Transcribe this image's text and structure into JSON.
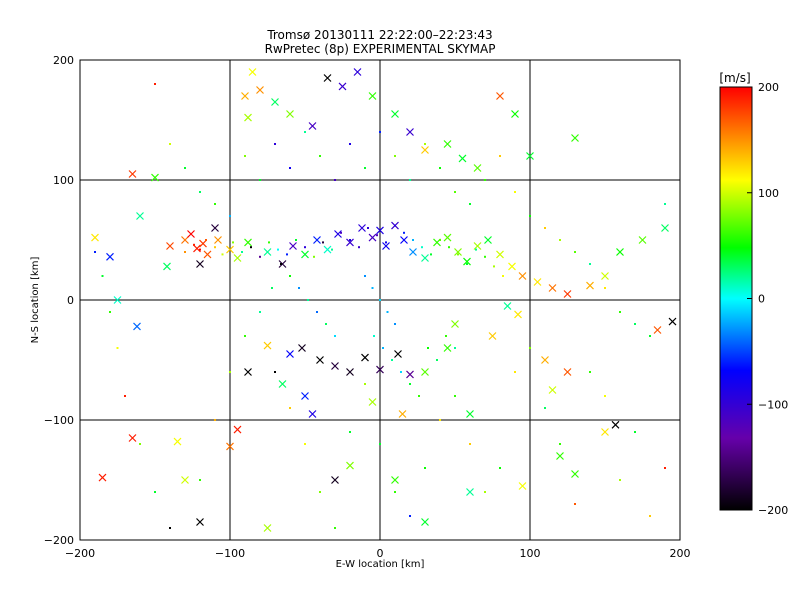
{
  "chart_data": {
    "type": "scatter",
    "title": "Tromsø 20130111 22:22:00–22:23:43",
    "subtitle": "RwPretec (8p) EXPERIMENTAL SKYMAP",
    "xlabel": "E-W location [km]",
    "ylabel": "N-S location [km]",
    "xlim": [
      -200,
      200
    ],
    "ylim": [
      -200,
      200
    ],
    "xticks": [
      -200,
      -100,
      0,
      100,
      200
    ],
    "yticks": [
      -200,
      -100,
      0,
      100,
      200
    ],
    "grid": true,
    "colorbar": {
      "label": "[m/s]",
      "min": -200,
      "max": 200,
      "ticks": [
        200,
        100,
        0,
        -100,
        -200
      ],
      "colors": [
        "#000000",
        "#6600aa",
        "#0000ff",
        "#00ffff",
        "#00ff00",
        "#ffff00",
        "#ff0000"
      ]
    },
    "series": [
      {
        "marker": "x",
        "points": [
          [
            -122,
            43,
            190
          ],
          [
            -118,
            47,
            180
          ],
          [
            -130,
            50,
            160
          ],
          [
            -115,
            38,
            170
          ],
          [
            -126,
            55,
            200
          ],
          [
            -108,
            50,
            150
          ],
          [
            -140,
            45,
            175
          ],
          [
            -100,
            42,
            130
          ],
          [
            -95,
            35,
            90
          ],
          [
            -88,
            48,
            60
          ],
          [
            -75,
            40,
            20
          ],
          [
            -65,
            30,
            -180
          ],
          [
            -58,
            45,
            -120
          ],
          [
            -50,
            38,
            40
          ],
          [
            -42,
            50,
            -60
          ],
          [
            -35,
            42,
            10
          ],
          [
            -28,
            55,
            -90
          ],
          [
            -20,
            48,
            -110
          ],
          [
            -12,
            60,
            -100
          ],
          [
            -5,
            52,
            -120
          ],
          [
            0,
            58,
            -90
          ],
          [
            4,
            45,
            -80
          ],
          [
            10,
            62,
            -110
          ],
          [
            16,
            50,
            -70
          ],
          [
            22,
            40,
            -30
          ],
          [
            30,
            35,
            20
          ],
          [
            38,
            48,
            60
          ],
          [
            45,
            52,
            70
          ],
          [
            52,
            40,
            80
          ],
          [
            58,
            32,
            50
          ],
          [
            65,
            45,
            90
          ],
          [
            72,
            50,
            40
          ],
          [
            80,
            38,
            100
          ],
          [
            88,
            28,
            110
          ],
          [
            95,
            20,
            150
          ],
          [
            105,
            15,
            120
          ],
          [
            115,
            10,
            160
          ],
          [
            125,
            5,
            180
          ],
          [
            140,
            12,
            140
          ],
          [
            150,
            20,
            100
          ],
          [
            160,
            40,
            50
          ],
          [
            175,
            50,
            70
          ],
          [
            190,
            60,
            30
          ],
          [
            195,
            -18,
            -200
          ],
          [
            185,
            -25,
            170
          ],
          [
            -160,
            70,
            20
          ],
          [
            -150,
            102,
            60
          ],
          [
            -165,
            105,
            180
          ],
          [
            -190,
            52,
            120
          ],
          [
            -180,
            36,
            -60
          ],
          [
            -175,
            0,
            10
          ],
          [
            -162,
            -22,
            -40
          ],
          [
            -142,
            28,
            30
          ],
          [
            -120,
            30,
            -190
          ],
          [
            -110,
            60,
            -180
          ],
          [
            -85,
            190,
            110
          ],
          [
            -90,
            170,
            140
          ],
          [
            -88,
            152,
            90
          ],
          [
            -80,
            175,
            150
          ],
          [
            -70,
            165,
            30
          ],
          [
            -60,
            155,
            80
          ],
          [
            -45,
            145,
            -120
          ],
          [
            -35,
            185,
            -200
          ],
          [
            -25,
            178,
            -110
          ],
          [
            -15,
            190,
            -100
          ],
          [
            -5,
            170,
            60
          ],
          [
            10,
            155,
            40
          ],
          [
            20,
            140,
            -110
          ],
          [
            30,
            125,
            130
          ],
          [
            45,
            130,
            60
          ],
          [
            55,
            118,
            40
          ],
          [
            65,
            110,
            70
          ],
          [
            80,
            170,
            170
          ],
          [
            90,
            155,
            50
          ],
          [
            100,
            120,
            40
          ],
          [
            130,
            135,
            60
          ],
          [
            -40,
            -50,
            -200
          ],
          [
            -30,
            -55,
            -180
          ],
          [
            -20,
            -60,
            -190
          ],
          [
            -10,
            -48,
            -200
          ],
          [
            0,
            -58,
            -170
          ],
          [
            12,
            -45,
            -200
          ],
          [
            20,
            -62,
            -150
          ],
          [
            -52,
            -40,
            -190
          ],
          [
            -60,
            -45,
            -70
          ],
          [
            -75,
            -38,
            130
          ],
          [
            -88,
            -60,
            -200
          ],
          [
            -65,
            -70,
            30
          ],
          [
            -50,
            -80,
            -60
          ],
          [
            -45,
            -95,
            -90
          ],
          [
            -95,
            -108,
            190
          ],
          [
            -100,
            -122,
            160
          ],
          [
            -135,
            -118,
            110
          ],
          [
            -130,
            -150,
            100
          ],
          [
            -165,
            -115,
            190
          ],
          [
            -185,
            -148,
            190
          ],
          [
            -120,
            -185,
            -200
          ],
          [
            -75,
            -190,
            90
          ],
          [
            -30,
            -150,
            -190
          ],
          [
            -20,
            -138,
            80
          ],
          [
            10,
            -150,
            60
          ],
          [
            30,
            -185,
            40
          ],
          [
            60,
            -160,
            20
          ],
          [
            95,
            -155,
            110
          ],
          [
            130,
            -145,
            60
          ],
          [
            150,
            -110,
            120
          ],
          [
            157,
            -104,
            -200
          ],
          [
            120,
            -130,
            60
          ],
          [
            60,
            -95,
            40
          ],
          [
            30,
            -60,
            70
          ],
          [
            45,
            -40,
            60
          ],
          [
            50,
            -20,
            80
          ],
          [
            85,
            -5,
            20
          ],
          [
            92,
            -12,
            120
          ],
          [
            75,
            -30,
            130
          ],
          [
            110,
            -50,
            140
          ],
          [
            125,
            -60,
            170
          ],
          [
            115,
            -75,
            100
          ],
          [
            -5,
            -85,
            90
          ],
          [
            15,
            -95,
            140
          ]
        ]
      },
      {
        "marker": "dot",
        "points": [
          [
            -120,
            42,
            200
          ],
          [
            -124,
            46,
            190
          ],
          [
            -116,
            50,
            170
          ],
          [
            -130,
            40,
            150
          ],
          [
            -110,
            44,
            130
          ],
          [
            -105,
            38,
            100
          ],
          [
            -98,
            48,
            80
          ],
          [
            -92,
            40,
            20
          ],
          [
            -86,
            44,
            -200
          ],
          [
            -80,
            36,
            -150
          ],
          [
            -74,
            48,
            60
          ],
          [
            -68,
            42,
            0
          ],
          [
            -62,
            38,
            -60
          ],
          [
            -56,
            50,
            40
          ],
          [
            -50,
            44,
            -100
          ],
          [
            -44,
            36,
            80
          ],
          [
            -38,
            48,
            -180
          ],
          [
            -32,
            42,
            20
          ],
          [
            -26,
            56,
            -120
          ],
          [
            -20,
            50,
            -90
          ],
          [
            -14,
            44,
            -110
          ],
          [
            -8,
            60,
            -100
          ],
          [
            -2,
            54,
            -130
          ],
          [
            4,
            48,
            -80
          ],
          [
            10,
            62,
            -100
          ],
          [
            16,
            56,
            -60
          ],
          [
            22,
            50,
            -20
          ],
          [
            28,
            44,
            10
          ],
          [
            34,
            38,
            40
          ],
          [
            40,
            50,
            70
          ],
          [
            46,
            44,
            60
          ],
          [
            52,
            38,
            80
          ],
          [
            58,
            30,
            40
          ],
          [
            64,
            42,
            20
          ],
          [
            70,
            36,
            60
          ],
          [
            76,
            28,
            90
          ],
          [
            82,
            20,
            110
          ],
          [
            -10,
            20,
            -30
          ],
          [
            -5,
            10,
            -20
          ],
          [
            0,
            0,
            -10
          ],
          [
            5,
            -10,
            -20
          ],
          [
            10,
            -20,
            -30
          ],
          [
            -4,
            -30,
            10
          ],
          [
            2,
            -40,
            -20
          ],
          [
            8,
            -50,
            20
          ],
          [
            14,
            -60,
            -10
          ],
          [
            20,
            -70,
            40
          ],
          [
            26,
            -80,
            60
          ],
          [
            32,
            -40,
            50
          ],
          [
            38,
            -50,
            30
          ],
          [
            44,
            -30,
            60
          ],
          [
            50,
            -40,
            20
          ],
          [
            -30,
            -30,
            -10
          ],
          [
            -36,
            -20,
            30
          ],
          [
            -42,
            -10,
            -40
          ],
          [
            -48,
            0,
            20
          ],
          [
            -54,
            10,
            -30
          ],
          [
            -60,
            20,
            50
          ],
          [
            -66,
            30,
            -200
          ],
          [
            -72,
            10,
            30
          ],
          [
            -150,
            180,
            190
          ],
          [
            -140,
            130,
            100
          ],
          [
            -130,
            110,
            40
          ],
          [
            -120,
            90,
            30
          ],
          [
            -110,
            80,
            60
          ],
          [
            -100,
            70,
            -20
          ],
          [
            -90,
            120,
            80
          ],
          [
            -80,
            100,
            40
          ],
          [
            -70,
            130,
            -100
          ],
          [
            -60,
            110,
            -80
          ],
          [
            -50,
            140,
            20
          ],
          [
            -40,
            120,
            60
          ],
          [
            -30,
            100,
            -120
          ],
          [
            -20,
            130,
            -90
          ],
          [
            -10,
            110,
            40
          ],
          [
            0,
            140,
            -60
          ],
          [
            10,
            120,
            80
          ],
          [
            20,
            100,
            20
          ],
          [
            30,
            130,
            90
          ],
          [
            40,
            110,
            50
          ],
          [
            50,
            90,
            70
          ],
          [
            60,
            80,
            40
          ],
          [
            70,
            100,
            60
          ],
          [
            80,
            120,
            130
          ],
          [
            90,
            90,
            110
          ],
          [
            100,
            70,
            50
          ],
          [
            110,
            60,
            130
          ],
          [
            120,
            50,
            90
          ],
          [
            130,
            40,
            70
          ],
          [
            140,
            30,
            20
          ],
          [
            150,
            10,
            120
          ],
          [
            160,
            -10,
            60
          ],
          [
            170,
            -20,
            30
          ],
          [
            180,
            -30,
            40
          ],
          [
            190,
            80,
            20
          ],
          [
            -190,
            40,
            -60
          ],
          [
            -185,
            20,
            40
          ],
          [
            -180,
            -10,
            60
          ],
          [
            -175,
            -40,
            110
          ],
          [
            -170,
            -80,
            190
          ],
          [
            -160,
            -120,
            80
          ],
          [
            -150,
            -160,
            40
          ],
          [
            -140,
            -190,
            -200
          ],
          [
            -120,
            -150,
            60
          ],
          [
            -110,
            -100,
            140
          ],
          [
            -100,
            -60,
            90
          ],
          [
            -90,
            -30,
            60
          ],
          [
            -80,
            -10,
            20
          ],
          [
            -70,
            -60,
            -200
          ],
          [
            -60,
            -90,
            130
          ],
          [
            -50,
            -120,
            110
          ],
          [
            -40,
            -160,
            80
          ],
          [
            -30,
            -190,
            60
          ],
          [
            -20,
            -110,
            40
          ],
          [
            -10,
            -70,
            90
          ],
          [
            0,
            -120,
            40
          ],
          [
            10,
            -160,
            60
          ],
          [
            20,
            -180,
            -60
          ],
          [
            30,
            -140,
            50
          ],
          [
            40,
            -100,
            120
          ],
          [
            50,
            -80,
            60
          ],
          [
            60,
            -120,
            130
          ],
          [
            70,
            -160,
            90
          ],
          [
            80,
            -140,
            50
          ],
          [
            90,
            -60,
            120
          ],
          [
            100,
            -40,
            80
          ],
          [
            110,
            -90,
            30
          ],
          [
            120,
            -120,
            60
          ],
          [
            130,
            -170,
            170
          ],
          [
            140,
            -60,
            60
          ],
          [
            150,
            -80,
            110
          ],
          [
            160,
            -150,
            90
          ],
          [
            170,
            -110,
            40
          ],
          [
            180,
            -180,
            130
          ],
          [
            190,
            -140,
            190
          ]
        ]
      }
    ]
  }
}
